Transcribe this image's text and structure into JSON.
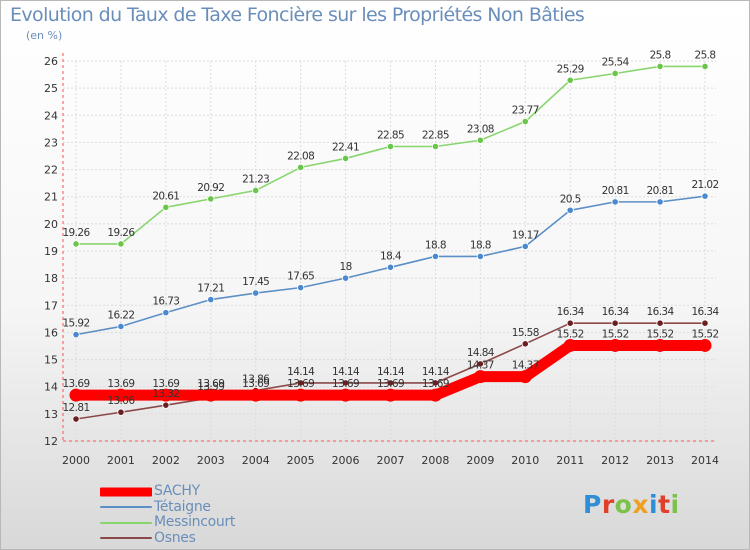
{
  "header": {
    "title": "Evolution du Taux de Taxe Foncière sur les Propriétés Non Bâties",
    "subtitle": "(en %)"
  },
  "logo": {
    "text": "Proxiti",
    "letters": [
      {
        "char": "P",
        "color": "#2f8fd6"
      },
      {
        "char": "r",
        "color": "#e0402a"
      },
      {
        "char": "o",
        "color": "#7cc24a"
      },
      {
        "char": "x",
        "color": "#f0a020"
      },
      {
        "char": "i",
        "color": "#2f8fd6"
      },
      {
        "char": "t",
        "color": "#e0402a"
      },
      {
        "char": "i",
        "color": "#7cc24a"
      }
    ]
  },
  "chart_data": {
    "type": "line",
    "title": "Evolution du Taux de Taxe Foncière sur les Propriétés Non Bâties",
    "ylabel": "(en %)",
    "xlabel": "",
    "x": [
      "2000",
      "2001",
      "2002",
      "2003",
      "2004",
      "2005",
      "2006",
      "2007",
      "2008",
      "2009",
      "2010",
      "2011",
      "2012",
      "2013",
      "2014"
    ],
    "ylim": [
      12,
      26
    ],
    "yticks": [
      12,
      13,
      14,
      15,
      16,
      17,
      18,
      19,
      20,
      21,
      22,
      23,
      24,
      25,
      26
    ],
    "grid": true,
    "legend_position": "bottom-left",
    "series": [
      {
        "name": "SACHY",
        "color": "#ff0000",
        "values": [
          13.69,
          13.69,
          13.69,
          13.69,
          13.69,
          13.69,
          13.69,
          13.69,
          13.69,
          14.37,
          14.37,
          15.52,
          15.52,
          15.52,
          15.52
        ],
        "labels": [
          "13.69",
          "13.69",
          "13.69",
          "13.69",
          "13.69",
          "13.69",
          "13.69",
          "13.69",
          "13.69",
          "14.37",
          "14.37",
          "15.52",
          "15.52",
          "15.52",
          "15.52"
        ]
      },
      {
        "name": "Tétaigne",
        "color": "#5c8fc6",
        "marker_color": "#4a88d0",
        "values": [
          15.92,
          16.22,
          16.73,
          17.21,
          17.45,
          17.65,
          18,
          18.4,
          18.8,
          18.8,
          19.17,
          20.5,
          20.81,
          20.81,
          21.02
        ],
        "labels": [
          "15.92",
          "16.22",
          "16.73",
          "17.21",
          "17.45",
          "17.65",
          "18",
          "18.4",
          "18.8",
          "18.8",
          "19.17",
          "20.5",
          "20.81",
          "20.81",
          "21.02"
        ]
      },
      {
        "name": "Messincourt",
        "color": "#88d56e",
        "marker_color": "#6ac64a",
        "values": [
          19.26,
          19.26,
          20.61,
          20.92,
          21.23,
          22.08,
          22.41,
          22.85,
          22.85,
          23.08,
          23.77,
          25.29,
          25.54,
          25.8,
          25.8
        ],
        "labels": [
          "19.26",
          "19.26",
          "20.61",
          "20.92",
          "21.23",
          "22.08",
          "22.41",
          "22.85",
          "22.85",
          "23.08",
          "23.77",
          "25.29",
          "25.54",
          "25.8",
          "25.8"
        ]
      },
      {
        "name": "Osnes",
        "color": "#8a4848",
        "marker_color": "#6a2020",
        "values": [
          12.81,
          13.06,
          13.32,
          13.59,
          13.86,
          14.14,
          14.14,
          14.14,
          14.14,
          14.84,
          15.58,
          16.34,
          16.34,
          16.34,
          16.34
        ],
        "labels": [
          "12.81",
          "13.06",
          "13.32",
          "13.59",
          "13.86",
          "14.14",
          "14.14",
          "14.14",
          "14.14",
          "14.84",
          "15.58",
          "16.34",
          "16.34",
          "16.34",
          "16.34"
        ]
      }
    ]
  }
}
